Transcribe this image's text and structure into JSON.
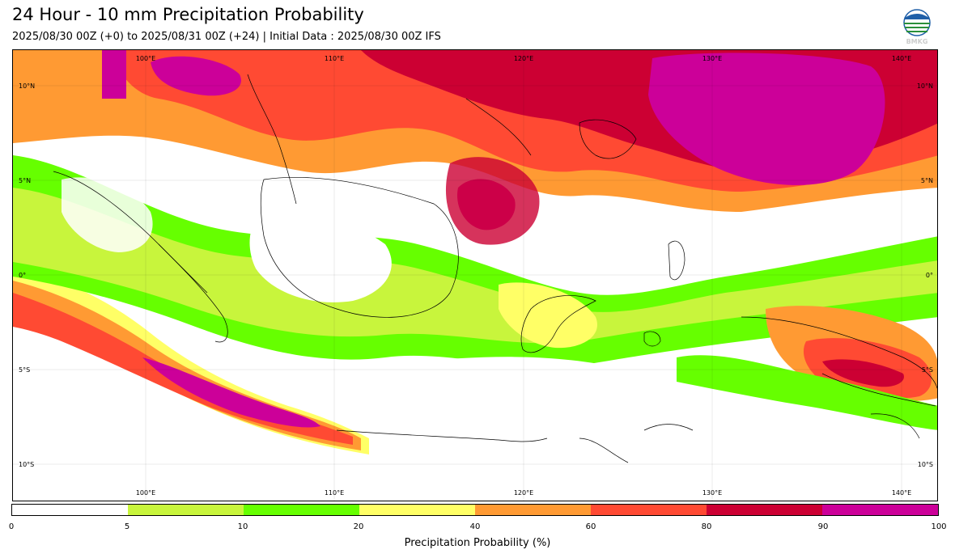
{
  "title": "24 Hour - 10 mm Precipitation Probability",
  "subtitle": "2025/08/30 00Z (+0) to 2025/08/31 00Z (+24) | Initial Data : 2025/08/30 00Z IFS",
  "logo": {
    "text": "BMKG",
    "icon": "bmkg-logo-icon"
  },
  "map": {
    "lon_labels_top": [
      "100°E",
      "110°E",
      "120°E",
      "130°E",
      "140°E"
    ],
    "lon_labels_bottom": [
      "100°E",
      "110°E",
      "120°E",
      "130°E",
      "140°E"
    ],
    "lat_labels_left": [
      "10°N",
      "5°N",
      "0°",
      "5°S",
      "10°S"
    ],
    "lat_labels_right": [
      "10°N",
      "5°N",
      "0°",
      "5°S",
      "10°S"
    ]
  },
  "colorbar": {
    "label": "Precipitation Probability (%)",
    "ticks": [
      "0",
      "5",
      "10",
      "20",
      "40",
      "60",
      "80",
      "90",
      "100"
    ],
    "colors": [
      "#ffffff",
      "#c8f53c",
      "#66ff00",
      "#ffff66",
      "#ff9a33",
      "#ff4a33",
      "#cc0033",
      "#cc0099"
    ]
  },
  "palette": {
    "white": "#ffffff",
    "lightgreen": "#c8f53c",
    "green": "#66ff00",
    "yellow": "#ffff66",
    "orange": "#ff9a33",
    "red": "#ff4a33",
    "darkred": "#cc0033",
    "magenta": "#cc0099"
  }
}
